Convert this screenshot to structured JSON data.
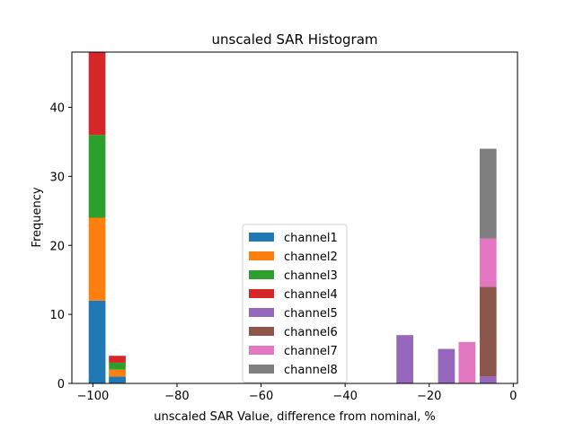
{
  "chart_data": {
    "type": "bar",
    "stacked": true,
    "title": "unscaled SAR Histogram",
    "xlabel": "unscaled SAR Value, difference from nominal, %",
    "ylabel": "Frequency",
    "xlim": [
      -105,
      1
    ],
    "ylim": [
      0,
      48
    ],
    "xticks": [
      -100,
      -80,
      -60,
      -40,
      -20,
      0
    ],
    "xtick_labels": [
      "−100",
      "−80",
      "−60",
      "−40",
      "−20",
      "0"
    ],
    "yticks": [
      0,
      10,
      20,
      30,
      40
    ],
    "ytick_labels": [
      "0",
      "10",
      "20",
      "30",
      "40"
    ],
    "legend_position": "lower-center",
    "series": [
      {
        "name": "channel1",
        "color": "#1f77b4",
        "bins": [
          {
            "x0": -101,
            "x1": -97,
            "count": 12
          },
          {
            "x0": -96.2,
            "x1": -92.2,
            "count": 1
          }
        ]
      },
      {
        "name": "channel2",
        "color": "#ff7f0e",
        "bins": [
          {
            "x0": -101,
            "x1": -97,
            "count": 12
          },
          {
            "x0": -96.2,
            "x1": -92.2,
            "count": 1
          }
        ]
      },
      {
        "name": "channel3",
        "color": "#2ca02c",
        "bins": [
          {
            "x0": -101,
            "x1": -97,
            "count": 12
          },
          {
            "x0": -96.2,
            "x1": -92.2,
            "count": 1
          }
        ]
      },
      {
        "name": "channel4",
        "color": "#d62728",
        "bins": [
          {
            "x0": -101,
            "x1": -97,
            "count": 12
          },
          {
            "x0": -96.2,
            "x1": -92.2,
            "count": 1
          }
        ]
      },
      {
        "name": "channel5",
        "color": "#9467bd",
        "bins": [
          {
            "x0": -27.8,
            "x1": -23.8,
            "count": 7
          },
          {
            "x0": -17.9,
            "x1": -13.9,
            "count": 5
          },
          {
            "x0": -8,
            "x1": -4,
            "count": 1
          }
        ]
      },
      {
        "name": "channel6",
        "color": "#8c564b",
        "bins": [
          {
            "x0": -8,
            "x1": -4,
            "count": 13
          }
        ]
      },
      {
        "name": "channel7",
        "color": "#e377c2",
        "bins": [
          {
            "x0": -13,
            "x1": -9,
            "count": 6
          },
          {
            "x0": -8,
            "x1": -4,
            "count": 7
          }
        ]
      },
      {
        "name": "channel8",
        "color": "#7f7f7f",
        "bins": [
          {
            "x0": -8,
            "x1": -4,
            "count": 13
          }
        ]
      }
    ]
  }
}
